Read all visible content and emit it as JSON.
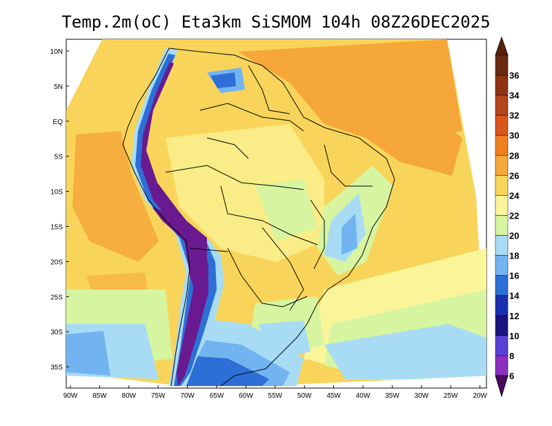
{
  "title": "Temp.2m(oC) Eta3km SiSMOM 104h 08Z26DEC2025",
  "lat_labels": [
    "10N",
    "5N",
    "EQ",
    "5S",
    "10S",
    "15S",
    "20S",
    "25S",
    "30S",
    "35S"
  ],
  "lon_labels": [
    "90W",
    "85W",
    "80W",
    "75W",
    "70W",
    "65W",
    "60W",
    "55W",
    "50W",
    "45W",
    "40W",
    "35W",
    "30W",
    "25W",
    "20W"
  ],
  "colorbar": {
    "labels": [
      "36",
      "34",
      "32",
      "30",
      "28",
      "26",
      "24",
      "22",
      "20",
      "18",
      "16",
      "14",
      "12",
      "10",
      "8",
      "6"
    ],
    "colors": [
      "#6b2a10",
      "#8f3312",
      "#b5451b",
      "#d9561c",
      "#f07f22",
      "#f6a73a",
      "#f8d55a",
      "#fbf59a",
      "#d7f5a0",
      "#a8dcf5",
      "#72b4f0",
      "#2d6fd6",
      "#1a2fb0",
      "#1a1480",
      "#5a3fd6",
      "#8a2fc0",
      "#6a1a90",
      "#4a0a60"
    ],
    "cap_top_color": "#5a1f0b",
    "cap_bottom_color": "#4a0a60"
  }
}
